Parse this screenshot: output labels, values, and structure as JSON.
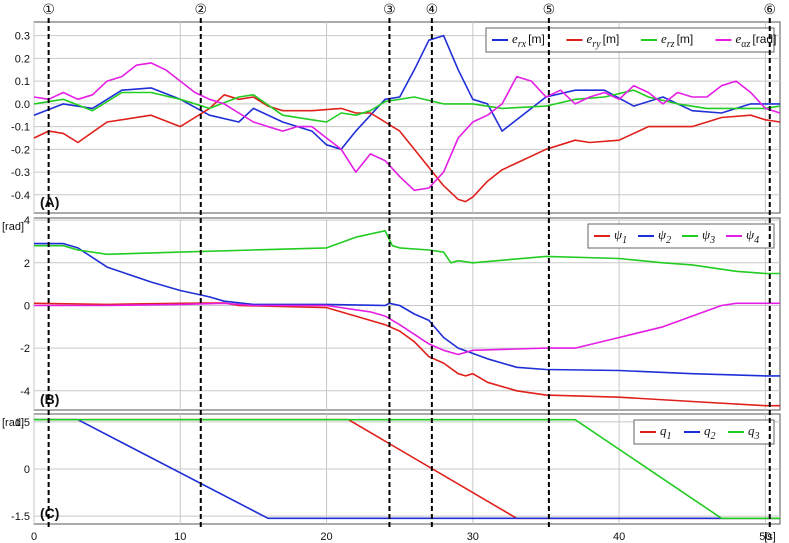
{
  "chart_data": [
    {
      "type": "line",
      "panel_label": "(A)",
      "ylim": [
        -0.48,
        0.36
      ],
      "yticks": [
        -0.4,
        -0.3,
        -0.2,
        -0.1,
        0.0,
        0.1,
        0.2,
        0.3
      ],
      "ytick_labels": [
        "-0.4",
        "-0.3",
        "-0.2",
        "-0.1",
        "0.0",
        "0.1",
        "0.2",
        "0.3"
      ],
      "grid": true,
      "legend_position": "top-right",
      "series": [
        {
          "name": "e_rx [m]",
          "legend_main": "e",
          "legend_sub": "rx",
          "legend_unit": "[m]",
          "color": "#1f2fd6",
          "x": [
            0,
            2,
            4,
            6,
            8,
            10,
            12,
            14,
            15,
            17,
            19,
            20,
            21,
            22,
            24,
            25,
            26,
            27,
            28,
            29,
            30,
            31,
            32,
            34,
            35,
            37,
            39,
            41,
            43,
            45,
            47,
            49,
            51
          ],
          "y": [
            -0.05,
            0.0,
            -0.02,
            0.06,
            0.07,
            0.02,
            -0.05,
            -0.08,
            -0.02,
            -0.08,
            -0.12,
            -0.18,
            -0.2,
            -0.12,
            0.02,
            0.03,
            0.15,
            0.28,
            0.3,
            0.15,
            0.02,
            0.0,
            -0.12,
            -0.02,
            0.03,
            0.06,
            0.06,
            -0.01,
            0.03,
            -0.03,
            -0.04,
            0.0,
            0.0
          ]
        },
        {
          "name": "e_ry [m]",
          "legend_main": "e",
          "legend_sub": "ry",
          "legend_unit": "[m]",
          "color": "#e0201b",
          "x": [
            0,
            1,
            2,
            3,
            5,
            8,
            10,
            11,
            12,
            13,
            14,
            15,
            16,
            17,
            19,
            21,
            22,
            23,
            24,
            25,
            26,
            27,
            28,
            29,
            29.5,
            30,
            31,
            32,
            33,
            35,
            37,
            38,
            40,
            42,
            45,
            47,
            49,
            50,
            51
          ],
          "y": [
            -0.15,
            -0.12,
            -0.13,
            -0.17,
            -0.08,
            -0.05,
            -0.1,
            -0.06,
            -0.02,
            0.04,
            0.02,
            0.03,
            -0.01,
            -0.03,
            -0.03,
            -0.02,
            -0.04,
            -0.04,
            -0.08,
            -0.12,
            -0.2,
            -0.28,
            -0.36,
            -0.42,
            -0.43,
            -0.41,
            -0.34,
            -0.29,
            -0.26,
            -0.2,
            -0.16,
            -0.17,
            -0.16,
            -0.1,
            -0.1,
            -0.06,
            -0.05,
            -0.07,
            -0.08
          ]
        },
        {
          "name": "e_rz [m]",
          "legend_main": "e",
          "legend_sub": "rz",
          "legend_unit": "[m]",
          "color": "#22cc22",
          "x": [
            0,
            2,
            4,
            6,
            8,
            10,
            12,
            14,
            15,
            17,
            19,
            20,
            21,
            22,
            23,
            24,
            26,
            28,
            30,
            32,
            35,
            37,
            39,
            41,
            42,
            44,
            46,
            48,
            50,
            51
          ],
          "y": [
            0.0,
            0.02,
            -0.03,
            0.05,
            0.05,
            0.02,
            -0.02,
            0.03,
            0.04,
            -0.05,
            -0.07,
            -0.08,
            -0.04,
            -0.05,
            -0.03,
            0.01,
            0.03,
            0.0,
            0.0,
            -0.02,
            -0.01,
            0.02,
            0.03,
            0.06,
            0.03,
            0.0,
            -0.02,
            -0.02,
            -0.02,
            -0.01
          ]
        },
        {
          "name": "e_αz [rad]",
          "legend_main": "e",
          "legend_sub": "αz",
          "legend_unit": "[rad]",
          "color": "#e41ee4",
          "x": [
            0,
            1,
            2,
            3,
            4,
            5,
            6,
            7,
            8,
            9,
            10,
            11,
            12,
            13,
            14,
            15,
            16,
            17,
            18,
            19,
            20,
            21,
            22,
            23,
            24,
            25,
            26,
            27,
            28,
            29,
            30,
            31,
            32,
            33,
            34,
            35,
            36,
            37,
            38,
            39,
            40,
            41,
            42,
            43,
            44,
            45,
            46,
            47,
            48,
            49,
            50,
            51
          ],
          "y": [
            0.03,
            0.02,
            0.05,
            0.02,
            0.04,
            0.1,
            0.12,
            0.17,
            0.18,
            0.15,
            0.1,
            0.05,
            0.02,
            0.0,
            -0.04,
            -0.08,
            -0.1,
            -0.12,
            -0.1,
            -0.1,
            -0.15,
            -0.2,
            -0.3,
            -0.22,
            -0.25,
            -0.32,
            -0.38,
            -0.37,
            -0.3,
            -0.15,
            -0.08,
            -0.05,
            0.0,
            0.12,
            0.1,
            0.03,
            0.06,
            0.0,
            0.03,
            0.05,
            0.02,
            0.08,
            0.05,
            0.0,
            0.05,
            0.03,
            0.03,
            0.08,
            0.1,
            0.05,
            -0.02,
            -0.04
          ]
        }
      ]
    },
    {
      "type": "line",
      "panel_label": "(B)",
      "unit_label": "[rad]",
      "ylim": [
        -4.9,
        4.1
      ],
      "yticks": [
        -4,
        -2,
        0,
        2,
        4
      ],
      "ytick_labels": [
        "-4",
        "-2",
        "0",
        "2",
        "4"
      ],
      "grid": true,
      "legend_position": "top-right",
      "series": [
        {
          "name": "ψ1",
          "legend_main": "ψ",
          "legend_sub": "1",
          "color": "#e0201b",
          "x": [
            0,
            5,
            10,
            13,
            14,
            20,
            24,
            25,
            26,
            27,
            28,
            29,
            29.5,
            30,
            31,
            33,
            35,
            40,
            45,
            50,
            51
          ],
          "y": [
            0.1,
            0.05,
            0.1,
            0.12,
            0.0,
            -0.1,
            -0.9,
            -1.2,
            -1.7,
            -2.4,
            -2.7,
            -3.2,
            -3.3,
            -3.2,
            -3.6,
            -4.0,
            -4.2,
            -4.3,
            -4.5,
            -4.7,
            -4.7
          ]
        },
        {
          "name": "ψ2",
          "legend_main": "ψ",
          "legend_sub": "2",
          "color": "#1f2fd6",
          "x": [
            0,
            2,
            3,
            5,
            8,
            10,
            12,
            13,
            15,
            20,
            24,
            24.3,
            25,
            26,
            27,
            28,
            29,
            31,
            33,
            35,
            40,
            45,
            50,
            51
          ],
          "y": [
            2.9,
            2.9,
            2.7,
            1.8,
            1.1,
            0.7,
            0.4,
            0.2,
            0.05,
            0.05,
            0.0,
            0.1,
            0.0,
            -0.4,
            -0.7,
            -1.5,
            -2.0,
            -2.5,
            -2.9,
            -3.0,
            -3.05,
            -3.2,
            -3.3,
            -3.3
          ]
        },
        {
          "name": "ψ3",
          "legend_main": "ψ",
          "legend_sub": "3",
          "color": "#22cc22",
          "x": [
            0,
            2,
            3,
            5,
            10,
            15,
            20,
            22,
            24,
            24.5,
            25,
            27,
            28,
            28.5,
            29,
            30,
            35,
            40,
            43,
            45,
            48,
            50,
            51
          ],
          "y": [
            2.8,
            2.8,
            2.6,
            2.4,
            2.5,
            2.6,
            2.7,
            3.2,
            3.5,
            2.8,
            2.7,
            2.6,
            2.5,
            2.0,
            2.1,
            2.0,
            2.3,
            2.2,
            2.0,
            1.9,
            1.6,
            1.5,
            1.5
          ]
        },
        {
          "name": "ψ4",
          "legend_main": "ψ",
          "legend_sub": "4",
          "color": "#e41ee4",
          "x": [
            0,
            5,
            10,
            13,
            15,
            20,
            23,
            24,
            25,
            27,
            28,
            29,
            30,
            35,
            37,
            40,
            43,
            45,
            47,
            48,
            50,
            51
          ],
          "y": [
            0.0,
            0.0,
            0.05,
            0.1,
            0.0,
            0.0,
            -0.3,
            -0.5,
            -0.9,
            -1.8,
            -2.1,
            -2.3,
            -2.1,
            -2.0,
            -2.0,
            -1.5,
            -1.0,
            -0.5,
            0.0,
            0.1,
            0.1,
            0.1
          ]
        }
      ]
    },
    {
      "type": "line",
      "panel_label": "(C)",
      "unit_label": "[rad]",
      "ylim": [
        -1.75,
        1.75
      ],
      "yticks": [
        -1.5,
        0,
        1.5
      ],
      "ytick_labels": [
        "-1.5",
        "0",
        "1.5"
      ],
      "grid": true,
      "legend_position": "top-right",
      "series": [
        {
          "name": "q1",
          "legend_main": "q",
          "legend_sub": "1",
          "color": "#e0201b",
          "x": [
            0,
            21.5,
            33,
            51
          ],
          "y": [
            1.57,
            1.57,
            -1.57,
            -1.57
          ]
        },
        {
          "name": "q2",
          "legend_main": "q",
          "legend_sub": "2",
          "color": "#1f2fd6",
          "x": [
            0,
            3,
            16,
            51
          ],
          "y": [
            1.57,
            1.57,
            -1.57,
            -1.57
          ]
        },
        {
          "name": "q3",
          "legend_main": "q",
          "legend_sub": "3",
          "color": "#22cc22",
          "x": [
            0,
            37,
            47,
            51
          ],
          "y": [
            1.57,
            1.57,
            -1.57,
            -1.57
          ]
        }
      ]
    }
  ],
  "x_axis": {
    "xlim": [
      0,
      51
    ],
    "ticks": [
      0,
      10,
      20,
      30,
      40,
      50
    ],
    "tick_labels": [
      "0",
      "10",
      "20",
      "30",
      "40",
      "50"
    ],
    "unit_label": "[s]"
  },
  "events": [
    {
      "label": "①",
      "t": 1.0
    },
    {
      "label": "②",
      "t": 11.4
    },
    {
      "label": "③",
      "t": 24.3
    },
    {
      "label": "④",
      "t": 27.2
    },
    {
      "label": "⑤",
      "t": 35.2
    },
    {
      "label": "⑥",
      "t": 50.3
    }
  ]
}
